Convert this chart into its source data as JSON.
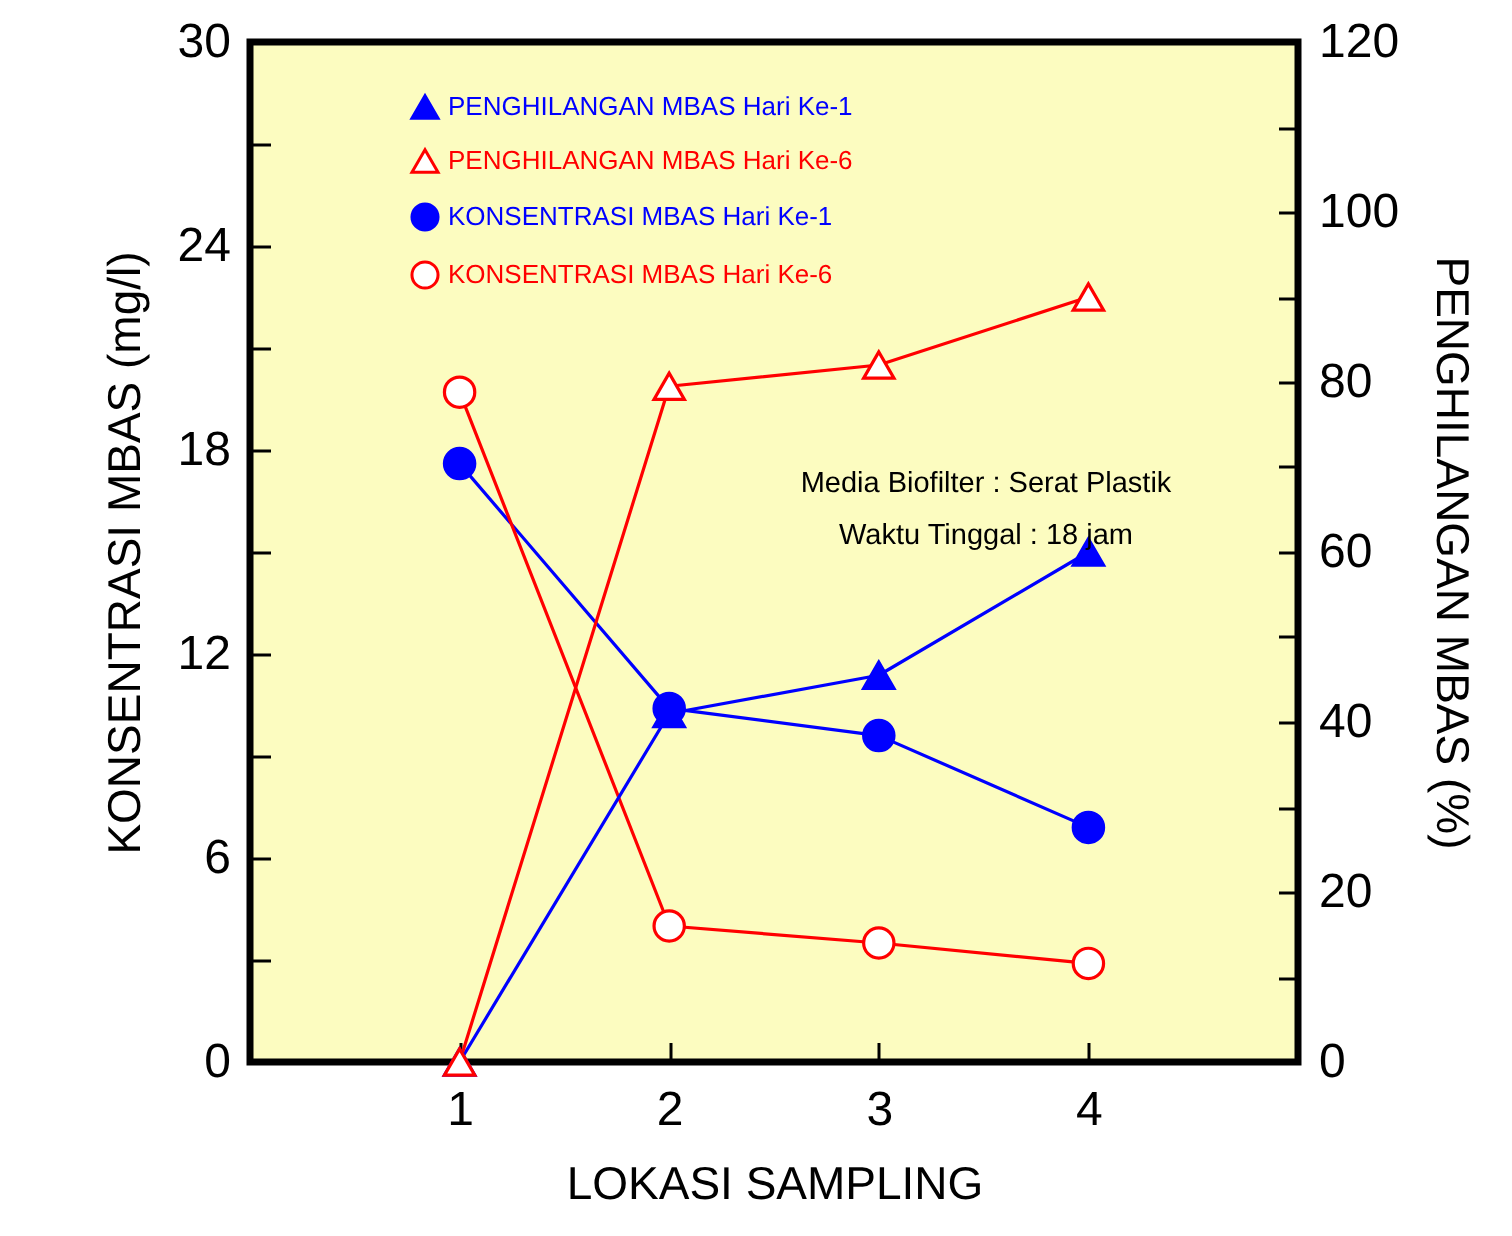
{
  "chart_data": {
    "type": "line",
    "xlabel": "LOKASI SAMPLING",
    "ylabel": "KONSENTRASI MBAS (mg/l)",
    "y2label": "PENGHILANGAN MBAS (%)",
    "x": [
      1,
      2,
      3,
      4
    ],
    "xlim": [
      0,
      5
    ],
    "xticks": [
      1,
      2,
      3,
      4
    ],
    "ylim": [
      0,
      30
    ],
    "yticks": [
      0,
      {
        "value": 3,
        "label": null
      },
      6,
      {
        "value": 9,
        "label": null
      },
      12,
      {
        "value": 15,
        "label": null
      },
      18,
      {
        "value": 21,
        "label": null
      },
      24,
      {
        "value": 27,
        "label": null
      },
      30
    ],
    "y2lim": [
      0,
      120
    ],
    "y2ticks": [
      0,
      {
        "value": 10,
        "label": null
      },
      20,
      {
        "value": 30,
        "label": null
      },
      40,
      {
        "value": 50,
        "label": null
      },
      60,
      {
        "value": 70,
        "label": null
      },
      80,
      {
        "value": 90,
        "label": null
      },
      100,
      {
        "value": 110,
        "label": null
      },
      120
    ],
    "grid": false,
    "legend": "top left",
    "annotations": [
      "Media Biofilter : Serat Plastik",
      "Waktu Tinggal : 18 jam"
    ],
    "series": [
      {
        "name": "PENGHILANGAN MBAS Hari Ke-1",
        "color": "#0000ff",
        "axis": "y2",
        "marker": "triangle",
        "values": [
          0,
          41,
          45.5,
          60
        ]
      },
      {
        "name": "PENGHILANGAN MBAS Hari Ke-6",
        "color": "#ff0000",
        "axis": "y2",
        "marker": "triangle",
        "values": [
          0,
          79.5,
          82,
          90
        ]
      },
      {
        "name": "KONSENTRASI MBAS Hari Ke-1",
        "color": "#0000ff",
        "marker": "circle",
        "values": [
          17.6,
          10.4,
          9.6,
          6.9
        ]
      },
      {
        "name": "KONSENTRASI MBAS Hari Ke-6",
        "color": "#ff0000",
        "marker": "circle",
        "values": [
          19.7,
          4.0,
          3.5,
          2.9
        ]
      }
    ]
  }
}
